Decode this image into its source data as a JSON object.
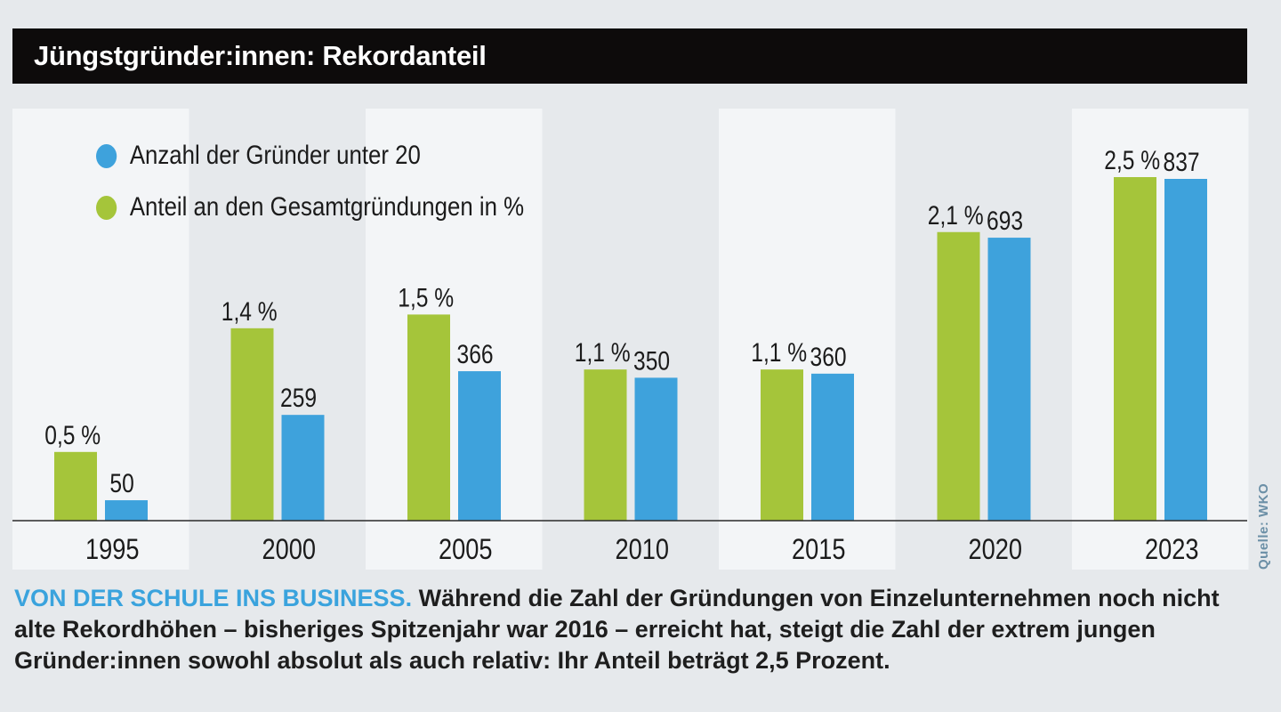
{
  "title": "Jüngstgründer:innen: Rekordanteil",
  "source": "Quelle: WKO",
  "caption": {
    "lead": "VON DER SCHULE INS BUSINESS.",
    "text": " Während die Zahl der Gründungen von Einzelunternehmen noch nicht alte Rekordhöhen – bisheriges Spitzenjahr war 2016 – erreicht hat, steigt die Zahl der extrem jungen Gründer:innen sowohl absolut als auch relativ: Ihr Anteil beträgt 2,5 Prozent."
  },
  "colors": {
    "green": "#a5c53a",
    "blue": "#3ea2dc",
    "panel": "#f3f5f7"
  },
  "chart_data": {
    "type": "bar",
    "title": "Jüngstgründer:innen: Rekordanteil",
    "categories": [
      "1995",
      "2000",
      "2005",
      "2010",
      "2015",
      "2020",
      "2023"
    ],
    "series": [
      {
        "name": "Anteil an den Gesamtgründungen in %",
        "color": "#a5c53a",
        "values": [
          0.5,
          1.4,
          1.5,
          1.1,
          1.1,
          2.1,
          2.5
        ],
        "labels": [
          "0,5 %",
          "1,4 %",
          "1,5 %",
          "1,1 %",
          "1,1 %",
          "2,1 %",
          "2,5 %"
        ],
        "ylim": [
          0,
          2.5
        ]
      },
      {
        "name": "Anzahl der Gründer unter 20",
        "color": "#3ea2dc",
        "values": [
          50,
          259,
          366,
          350,
          360,
          693,
          837
        ],
        "labels": [
          "50",
          "259",
          "366",
          "350",
          "360",
          "693",
          "837"
        ],
        "ylim": [
          0,
          837
        ]
      }
    ],
    "legend": [
      {
        "name": "Anzahl der Gründer unter 20",
        "color": "#3ea2dc"
      },
      {
        "name": "Anteil an den Gesamtgründungen in %",
        "color": "#a5c53a"
      }
    ],
    "legend_position": "top-left",
    "xlabel": "",
    "ylabel": "",
    "grid": false
  }
}
